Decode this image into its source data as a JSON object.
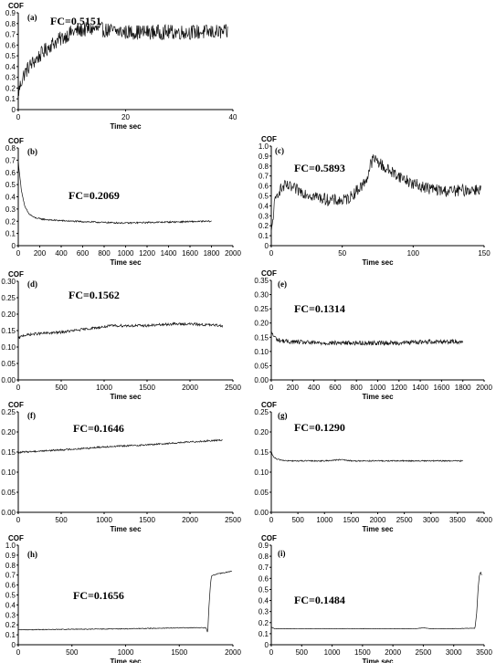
{
  "chart_data": [
    {
      "type": "line",
      "panel_label": "(a)",
      "annotation": "FC=0.5151",
      "ylabel": "COF",
      "xlabel": "Time  sec",
      "xlim": [
        0,
        40
      ],
      "ylim": [
        0,
        0.9
      ],
      "xticks": [
        0,
        20,
        40
      ],
      "yticks": [
        0,
        0.1,
        0.2,
        0.3,
        0.4,
        0.5,
        0.6,
        0.7,
        0.8,
        0.9
      ],
      "ytick_labels": [
        "0",
        "0.1",
        "0.2",
        "0.3",
        "0.4",
        "0.5",
        "0.6",
        "0.7",
        "0.8",
        "0.9"
      ],
      "x": [
        0,
        0.5,
        1,
        2,
        3,
        4,
        5,
        6,
        8,
        10,
        12,
        14,
        16,
        20,
        25,
        30,
        35,
        39
      ],
      "y": [
        0.15,
        0.25,
        0.32,
        0.4,
        0.45,
        0.5,
        0.55,
        0.6,
        0.66,
        0.72,
        0.74,
        0.75,
        0.74,
        0.72,
        0.72,
        0.72,
        0.72,
        0.72
      ],
      "noise": 0.07
    },
    {
      "type": "line",
      "panel_label": "(b)",
      "annotation": "FC=0.2069",
      "ylabel": "COF",
      "xlabel": "Time  sec",
      "xlim": [
        0,
        2000
      ],
      "ylim": [
        0,
        0.8
      ],
      "xticks": [
        0,
        200,
        400,
        600,
        800,
        1000,
        1200,
        1400,
        1600,
        1800,
        2000
      ],
      "yticks": [
        0,
        0.1,
        0.2,
        0.3,
        0.4,
        0.5,
        0.6,
        0.7,
        0.8
      ],
      "ytick_labels": [
        "0",
        "0.1",
        "0.2",
        "0.3",
        "0.4",
        "0.5",
        "0.6",
        "0.7",
        "0.8"
      ],
      "x": [
        0,
        10,
        30,
        60,
        100,
        150,
        200,
        300,
        500,
        800,
        1000,
        1200,
        1500,
        1800
      ],
      "y": [
        0.7,
        0.6,
        0.45,
        0.32,
        0.26,
        0.23,
        0.22,
        0.21,
        0.2,
        0.19,
        0.185,
        0.19,
        0.195,
        0.2
      ],
      "noise": 0.006
    },
    {
      "type": "line",
      "panel_label": "(c)",
      "annotation": "FC=0.5893",
      "ylabel": "COF",
      "xlabel": "Time  sec",
      "xlim": [
        0,
        150
      ],
      "ylim": [
        0,
        1.0
      ],
      "xticks": [
        0,
        50,
        100,
        150
      ],
      "yticks": [
        0,
        0.1,
        0.2,
        0.3,
        0.4,
        0.5,
        0.6,
        0.7,
        0.8,
        0.9,
        1.0
      ],
      "ytick_labels": [
        "0",
        "0.1",
        "0.2",
        "0.3",
        "0.4",
        "0.5",
        "0.6",
        "0.7",
        "0.8",
        "0.9",
        "1.0"
      ],
      "x": [
        0,
        2,
        5,
        10,
        20,
        30,
        40,
        50,
        55,
        60,
        65,
        68,
        70,
        72,
        75,
        80,
        90,
        100,
        110,
        120,
        130,
        148
      ],
      "y": [
        0.1,
        0.4,
        0.55,
        0.6,
        0.55,
        0.5,
        0.46,
        0.45,
        0.48,
        0.55,
        0.62,
        0.7,
        0.82,
        0.87,
        0.85,
        0.78,
        0.7,
        0.62,
        0.58,
        0.55,
        0.55,
        0.57
      ],
      "noise": 0.06
    },
    {
      "type": "line",
      "panel_label": "(d)",
      "annotation": "FC=0.1562",
      "ylabel": "COF",
      "xlabel": "Time  sec",
      "xlim": [
        0,
        2500
      ],
      "ylim": [
        0,
        0.3
      ],
      "xticks": [
        0,
        500,
        1000,
        1500,
        2000,
        2500
      ],
      "yticks": [
        0,
        0.05,
        0.1,
        0.15,
        0.2,
        0.25,
        0.3
      ],
      "ytick_labels": [
        "0.00",
        "0.05",
        "0.10",
        "0.15",
        "0.20",
        "0.25",
        "0.30"
      ],
      "x": [
        0,
        50,
        200,
        500,
        800,
        1100,
        1500,
        1800,
        2000,
        2380
      ],
      "y": [
        0.125,
        0.135,
        0.14,
        0.145,
        0.155,
        0.165,
        0.165,
        0.17,
        0.17,
        0.165
      ],
      "noise": 0.004
    },
    {
      "type": "line",
      "panel_label": "(e)",
      "annotation": "FC=0.1314",
      "ylabel": "COF",
      "xlabel": "Time  sec",
      "xlim": [
        0,
        2000
      ],
      "ylim": [
        0,
        0.35
      ],
      "xticks": [
        0,
        200,
        400,
        600,
        800,
        1000,
        1200,
        1400,
        1600,
        1800,
        2000
      ],
      "yticks": [
        0,
        0.05,
        0.1,
        0.15,
        0.2,
        0.25,
        0.3,
        0.35
      ],
      "ytick_labels": [
        "0.00",
        "0.05",
        "0.10",
        "0.15",
        "0.20",
        "0.25",
        "0.30",
        "0.35"
      ],
      "x": [
        0,
        20,
        60,
        150,
        400,
        800,
        1200,
        1500,
        1800
      ],
      "y": [
        0.17,
        0.155,
        0.14,
        0.135,
        0.13,
        0.13,
        0.13,
        0.135,
        0.135
      ],
      "noise": 0.008
    },
    {
      "type": "line",
      "panel_label": "(f)",
      "annotation": "FC=0.1646",
      "ylabel": "COF",
      "xlabel": "Time  sec",
      "xlim": [
        0,
        2500
      ],
      "ylim": [
        0,
        0.25
      ],
      "xticks": [
        0,
        500,
        1000,
        1500,
        2000,
        2500
      ],
      "yticks": [
        0,
        0.05,
        0.1,
        0.15,
        0.2,
        0.25
      ],
      "ytick_labels": [
        "0.00",
        "0.05",
        "0.10",
        "0.15",
        "0.20",
        "0.25"
      ],
      "x": [
        0,
        50,
        300,
        700,
        1000,
        1500,
        2000,
        2380
      ],
      "y": [
        0.148,
        0.15,
        0.153,
        0.158,
        0.163,
        0.168,
        0.175,
        0.18
      ],
      "noise": 0.002
    },
    {
      "type": "line",
      "panel_label": "(g)",
      "annotation": "FC=0.1290",
      "ylabel": "COF",
      "xlabel": "Time  sec",
      "xlim": [
        0,
        4000
      ],
      "ylim": [
        0,
        0.25
      ],
      "xticks": [
        0,
        500,
        1000,
        1500,
        2000,
        2500,
        3000,
        3500,
        4000
      ],
      "yticks": [
        0,
        0.05,
        0.1,
        0.15,
        0.2,
        0.25
      ],
      "ytick_labels": [
        "0.00",
        "0.05",
        "0.10",
        "0.15",
        "0.20",
        "0.25"
      ],
      "x": [
        0,
        30,
        100,
        300,
        1000,
        1300,
        1500,
        2000,
        3000,
        3600
      ],
      "y": [
        0.15,
        0.14,
        0.132,
        0.128,
        0.128,
        0.131,
        0.128,
        0.128,
        0.128,
        0.128
      ],
      "noise": 0.0015
    },
    {
      "type": "line",
      "panel_label": "(h)",
      "annotation": "FC=0.1656",
      "ylabel": "COF",
      "xlabel": "Time  sec",
      "xlim": [
        0,
        2000
      ],
      "ylim": [
        0,
        1.0
      ],
      "xticks": [
        0,
        500,
        1000,
        1500,
        2000
      ],
      "yticks": [
        0,
        0.1,
        0.2,
        0.3,
        0.4,
        0.5,
        0.6,
        0.7,
        0.8,
        0.9,
        1.0
      ],
      "ytick_labels": [
        "0",
        "0.1",
        "0.2",
        "0.3",
        "0.4",
        "0.5",
        "0.6",
        "0.7",
        "0.8",
        "0.9",
        "1.0"
      ],
      "x": [
        0,
        500,
        1000,
        1500,
        1750,
        1765,
        1775,
        1790,
        1800,
        1850,
        1900,
        1950,
        1990
      ],
      "y": [
        0.15,
        0.155,
        0.16,
        0.17,
        0.17,
        0.12,
        0.35,
        0.6,
        0.69,
        0.71,
        0.72,
        0.73,
        0.74
      ],
      "noise": 0.004
    },
    {
      "type": "line",
      "panel_label": "(i)",
      "annotation": "FC=0.1484",
      "ylabel": "COF",
      "xlabel": "Time  sec",
      "xlim": [
        0,
        3500
      ],
      "ylim": [
        0,
        0.9
      ],
      "xticks": [
        0,
        500,
        1000,
        1500,
        2000,
        2500,
        3000,
        3500
      ],
      "yticks": [
        0,
        0.1,
        0.2,
        0.3,
        0.4,
        0.5,
        0.6,
        0.7,
        0.8,
        0.9
      ],
      "ytick_labels": [
        "0",
        "0.1",
        "0.2",
        "0.3",
        "0.4",
        "0.5",
        "0.6",
        "0.7",
        "0.8",
        "0.9"
      ],
      "x": [
        0,
        50,
        200,
        1000,
        2000,
        2400,
        2500,
        2600,
        3000,
        3350,
        3380,
        3400,
        3420,
        3440,
        3460
      ],
      "y": [
        0.16,
        0.145,
        0.145,
        0.145,
        0.145,
        0.145,
        0.155,
        0.145,
        0.145,
        0.15,
        0.3,
        0.5,
        0.62,
        0.66,
        0.63
      ],
      "noise": 0.002
    }
  ]
}
